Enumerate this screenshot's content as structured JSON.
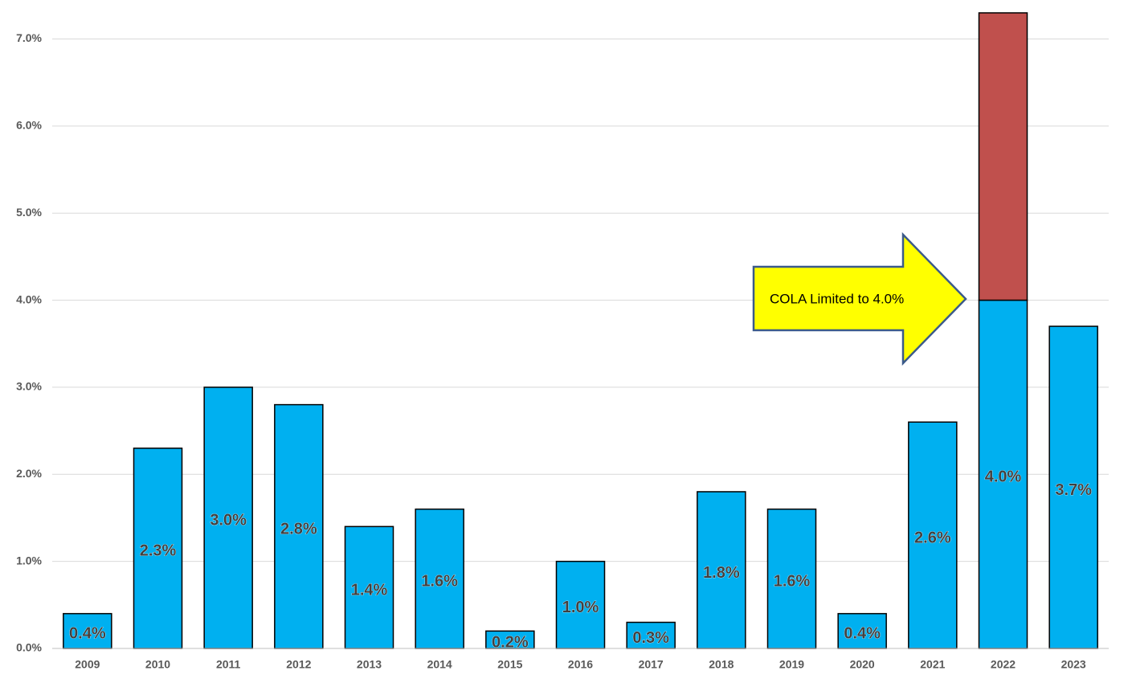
{
  "chart_data": {
    "type": "stacked_bar",
    "categories": [
      "2009",
      "2010",
      "2011",
      "2012",
      "2013",
      "2014",
      "2015",
      "2016",
      "2017",
      "2018",
      "2019",
      "2020",
      "2021",
      "2022",
      "2023"
    ],
    "series": [
      {
        "color": "#00b0f0",
        "values": [
          0.4,
          2.3,
          3.0,
          2.8,
          1.4,
          1.6,
          0.2,
          1.0,
          0.3,
          1.8,
          1.6,
          0.4,
          2.6,
          4.0,
          3.7
        ],
        "value_labels": [
          "0.4%",
          "2.3%",
          "3.0%",
          "2.8%",
          "1.4%",
          "1.6%",
          "0.2%",
          "1.0%",
          "0.3%",
          "1.8%",
          "1.6%",
          "0.4%",
          "2.6%",
          "4.0%",
          "3.7%"
        ]
      },
      {
        "color": "#c0504d",
        "values": [
          null,
          null,
          null,
          null,
          null,
          null,
          null,
          null,
          null,
          null,
          null,
          null,
          null,
          3.3,
          null
        ]
      }
    ],
    "ylim": [
      0,
      7.3
    ],
    "yticks": [
      {
        "value": 0,
        "label": "0.0%"
      },
      {
        "value": 1,
        "label": "1.0%"
      },
      {
        "value": 2,
        "label": "2.0%"
      },
      {
        "value": 3,
        "label": "3.0%"
      },
      {
        "value": 4,
        "label": "4.0%"
      },
      {
        "value": 5,
        "label": "5.0%"
      },
      {
        "value": 6,
        "label": "6.0%"
      },
      {
        "value": 7,
        "label": "7.0%"
      }
    ],
    "grid": true,
    "annotation": "COLA Limited to 4.0%"
  }
}
